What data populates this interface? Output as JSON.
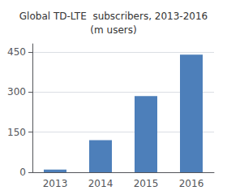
{
  "chart_data": {
    "type": "bar",
    "title": "Global TD-LTE  subscribers, 2013-2016\n(m users)",
    "categories": [
      "2013",
      "2014",
      "2015",
      "2016"
    ],
    "values": [
      10,
      120,
      285,
      440
    ],
    "color": "#4d7fba",
    "ylim": [
      0,
      480
    ],
    "yticks": [
      0,
      150,
      300,
      450
    ],
    "grid": true
  }
}
